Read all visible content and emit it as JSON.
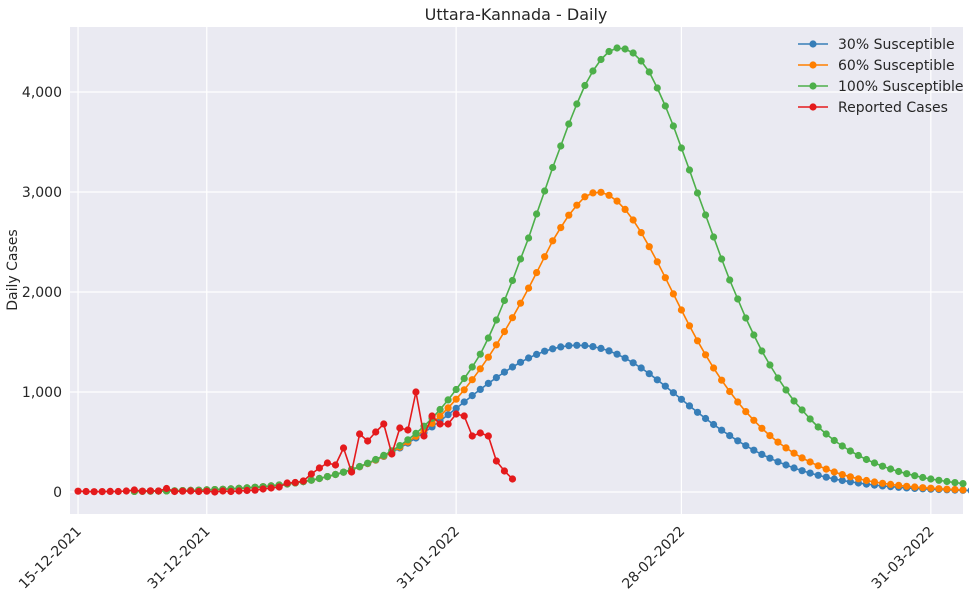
{
  "chart_data": {
    "type": "line",
    "title": "Uttara-Kannada - Daily",
    "xlabel": "",
    "ylabel": "Daily Cases",
    "x_start": "15-12-2021",
    "x_step_days": 1,
    "xlim": [
      "14-12-2021",
      "04-04-2022"
    ],
    "ylim": [
      -220,
      4650
    ],
    "yticks": [
      0,
      1000,
      2000,
      3000,
      4000
    ],
    "ytick_labels": [
      "0",
      "1,000",
      "2,000",
      "3,000",
      "4,000"
    ],
    "xticks": [
      "15-12-2021",
      "31-12-2021",
      "31-01-2022",
      "28-02-2022",
      "31-03-2022"
    ],
    "grid": true,
    "legend_position": "top-right",
    "background": "#eaeaf2",
    "series": [
      {
        "name": "30% Susceptible",
        "color": "#377eb8",
        "start": "22-12-2021",
        "values": [
          6,
          7,
          8,
          9,
          11,
          12,
          14,
          16,
          18,
          21,
          24,
          27,
          31,
          36,
          41,
          47,
          53,
          61,
          70,
          80,
          91,
          104,
          118,
          135,
          154,
          175,
          198,
          223,
          252,
          284,
          318,
          356,
          397,
          441,
          489,
          540,
          594,
          651,
          711,
          773,
          836,
          900,
          964,
          1026,
          1086,
          1144,
          1199,
          1250,
          1297,
          1340,
          1376,
          1408,
          1432,
          1451,
          1463,
          1467,
          1465,
          1454,
          1436,
          1411,
          1378,
          1338,
          1292,
          1240,
          1183,
          1122,
          1058,
          993,
          927,
          861,
          797,
          735,
          675,
          618,
          564,
          512,
          463,
          418,
          376,
          338,
          302,
          270,
          240,
          213,
          189,
          167,
          148,
          130,
          115,
          102,
          90,
          79,
          69,
          61,
          54,
          47,
          41,
          36,
          32,
          28,
          25,
          22,
          19,
          17,
          15,
          13
        ]
      },
      {
        "name": "60% Susceptible",
        "color": "#ff7f00",
        "start": "22-12-2021",
        "values": [
          6,
          7,
          8,
          9,
          11,
          12,
          14,
          16,
          18,
          21,
          24,
          27,
          31,
          36,
          41,
          47,
          53,
          61,
          70,
          80,
          91,
          104,
          118,
          135,
          154,
          175,
          198,
          224,
          253,
          285,
          320,
          359,
          402,
          449,
          500,
          557,
          619,
          687,
          760,
          841,
          928,
          1022,
          1123,
          1232,
          1348,
          1472,
          1604,
          1743,
          1888,
          2039,
          2194,
          2353,
          2512,
          2644,
          2768,
          2868,
          2952,
          2991,
          2997,
          2967,
          2909,
          2826,
          2720,
          2594,
          2453,
          2302,
          2143,
          1981,
          1820,
          1662,
          1512,
          1372,
          1240,
          1118,
          1005,
          900,
          804,
          717,
          637,
          564,
          499,
          441,
          388,
          341,
          300,
          262,
          229,
          200,
          174,
          152,
          132,
          115,
          100,
          87,
          76,
          66,
          57,
          50,
          43,
          38,
          33,
          28,
          25,
          21
        ]
      },
      {
        "name": "100% Susceptible",
        "color": "#4daf4a",
        "start": "22-12-2021",
        "values": [
          6,
          7,
          8,
          9,
          11,
          12,
          14,
          16,
          18,
          21,
          24,
          27,
          31,
          36,
          41,
          47,
          53,
          61,
          70,
          80,
          91,
          104,
          118,
          135,
          154,
          175,
          198,
          225,
          255,
          288,
          325,
          366,
          412,
          464,
          522,
          586,
          658,
          737,
          825,
          921,
          1025,
          1135,
          1250,
          1378,
          1540,
          1720,
          1915,
          2115,
          2330,
          2540,
          2780,
          3010,
          3245,
          3460,
          3680,
          3880,
          4065,
          4210,
          4325,
          4405,
          4440,
          4430,
          4390,
          4310,
          4200,
          4040,
          3860,
          3660,
          3440,
          3220,
          2990,
          2770,
          2550,
          2330,
          2120,
          1930,
          1740,
          1570,
          1410,
          1270,
          1140,
          1020,
          910,
          820,
          730,
          650,
          580,
          515,
          460,
          410,
          365,
          325,
          290,
          258,
          230,
          205,
          183,
          163,
          145,
          130,
          117,
          105,
          94,
          84
        ]
      },
      {
        "name": "Reported Cases",
        "color": "#e41a1c",
        "start": "15-12-2021",
        "values": [
          8,
          5,
          3,
          4,
          6,
          5,
          10,
          20,
          8,
          12,
          10,
          35,
          5,
          8,
          10,
          5,
          8,
          0,
          10,
          5,
          10,
          15,
          18,
          30,
          40,
          50,
          90,
          95,
          110,
          180,
          240,
          290,
          270,
          440,
          200,
          580,
          510,
          600,
          680,
          380,
          640,
          620,
          1000,
          560,
          760,
          680,
          680,
          780,
          760,
          560,
          590,
          560,
          310,
          210,
          130
        ]
      }
    ]
  }
}
